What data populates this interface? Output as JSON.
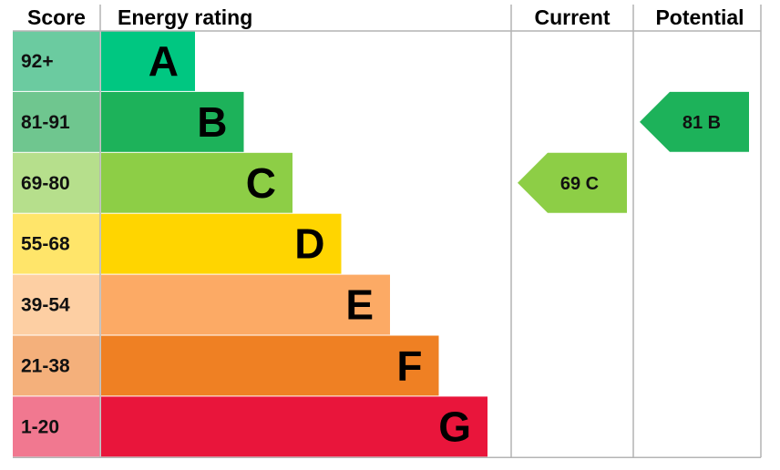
{
  "headers": {
    "score": "Score",
    "energy_rating": "Energy rating",
    "current": "Current",
    "potential": "Potential"
  },
  "chart_data": {
    "type": "bar",
    "categories": [
      "A",
      "B",
      "C",
      "D",
      "E",
      "F",
      "G"
    ],
    "bands": [
      {
        "score": "92+",
        "letter": "A",
        "bar_color": "#00c781",
        "score_color": "#6bcba0"
      },
      {
        "score": "81-91",
        "letter": "B",
        "bar_color": "#1db25a",
        "score_color": "#6fc68f"
      },
      {
        "score": "69-80",
        "letter": "C",
        "bar_color": "#8dce46",
        "score_color": "#b6df8c"
      },
      {
        "score": "55-68",
        "letter": "D",
        "bar_color": "#ffd500",
        "score_color": "#ffe56a"
      },
      {
        "score": "39-54",
        "letter": "E",
        "bar_color": "#fcaa65",
        "score_color": "#fdcfa3"
      },
      {
        "score": "21-38",
        "letter": "F",
        "bar_color": "#ef8023",
        "score_color": "#f4b07b"
      },
      {
        "score": "1-20",
        "letter": "G",
        "bar_color": "#e9153b",
        "score_color": "#f17890"
      }
    ],
    "current": {
      "value": 69,
      "letter": "C",
      "label": "69  C",
      "color": "#8dce46"
    },
    "potential": {
      "value": 81,
      "letter": "B",
      "label": "81  B",
      "color": "#1db25a"
    }
  }
}
